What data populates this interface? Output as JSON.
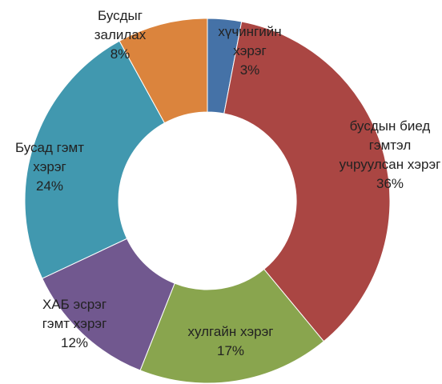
{
  "chart_data": {
    "type": "donut",
    "categories": [
      "хүчингийн хэрэг",
      "бусдын биед гэмтэл учруулсан хэрэг",
      "хулгайн хэрэг",
      "ХАБ эсрэг гэмт хэрэг",
      "Бусад гэмт хэрэг",
      "Бусдыг залилах"
    ],
    "values": [
      3,
      36,
      17,
      12,
      24,
      8
    ],
    "value_labels": [
      "3%",
      "36%",
      "17%",
      "12%",
      "24%",
      "8%"
    ],
    "colors": [
      "#4572a7",
      "#aa4643",
      "#89a54e",
      "#71588f",
      "#4198af",
      "#db843d"
    ]
  }
}
